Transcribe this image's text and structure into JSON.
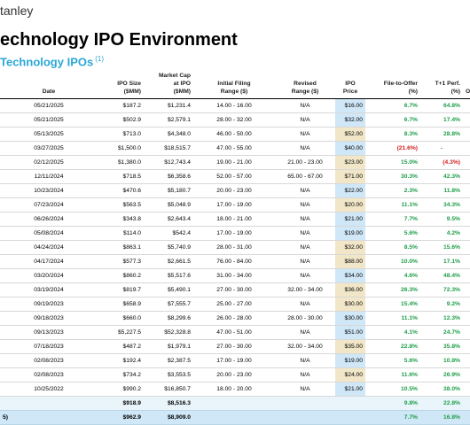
{
  "brand": "tanley",
  "title": "echnology IPO Environment",
  "subtitle": "Technology IPOs",
  "subtitle_note": "(1)",
  "headers": {
    "date": "Date",
    "ipo_size": "IPO Size\n($MM)",
    "mcap": "Market Cap\nat IPO\n($MM)",
    "filing": "Initial Filing\nRange ($)",
    "revised": "Revised\nRange ($)",
    "price": "IPO\nPrice",
    "fto": "File-to-Offer\n(%)",
    "t1": "T+1 Perf.\n(%)",
    "extra": "O"
  },
  "rows": [
    {
      "date": "05/21/2025",
      "size": "$187.2",
      "mcap": "$1,231.4",
      "filing": "14.00 - 16.00",
      "revised": "N/A",
      "price": "$16.00",
      "price_color": "blue",
      "fto": "6.7%",
      "fto_color": "green",
      "t1": "64.8%",
      "t1_color": "green"
    },
    {
      "date": "05/21/2025",
      "size": "$502.9",
      "mcap": "$2,579.1",
      "filing": "28.00 - 32.00",
      "revised": "N/A",
      "price": "$32.00",
      "price_color": "blue",
      "fto": "6.7%",
      "fto_color": "green",
      "t1": "17.4%",
      "t1_color": "green"
    },
    {
      "date": "05/13/2025",
      "size": "$713.0",
      "mcap": "$4,348.0",
      "filing": "46.00 - 50.00",
      "revised": "N/A",
      "price": "$52.00",
      "price_color": "tan",
      "fto": "8.3%",
      "fto_color": "green",
      "t1": "28.8%",
      "t1_color": "green"
    },
    {
      "date": "03/27/2025",
      "size": "$1,500.0",
      "mcap": "$18,515.7",
      "filing": "47.00 - 55.00",
      "revised": "N/A",
      "price": "$40.00",
      "price_color": "blue",
      "fto": "(21.6%)",
      "fto_color": "red",
      "t1": "-",
      "t1_color": "black"
    },
    {
      "date": "02/12/2025",
      "size": "$1,380.0",
      "mcap": "$12,743.4",
      "filing": "19.00 - 21.00",
      "revised": "21.00 - 23.00",
      "price": "$23.00",
      "price_color": "tan",
      "fto": "15.0%",
      "fto_color": "green",
      "t1": "(4.3%)",
      "t1_color": "red"
    },
    {
      "date": "12/11/2024",
      "size": "$718.5",
      "mcap": "$6,358.6",
      "filing": "52.00 - 57.00",
      "revised": "65.00 - 67.00",
      "price": "$71.00",
      "price_color": "tan",
      "fto": "30.3%",
      "fto_color": "green",
      "t1": "42.3%",
      "t1_color": "green"
    },
    {
      "date": "10/23/2024",
      "size": "$470.6",
      "mcap": "$5,180.7",
      "filing": "20.00 - 23.00",
      "revised": "N/A",
      "price": "$22.00",
      "price_color": "blue",
      "fto": "2.3%",
      "fto_color": "green",
      "t1": "11.8%",
      "t1_color": "green"
    },
    {
      "date": "07/23/2024",
      "size": "$563.5",
      "mcap": "$5,048.9",
      "filing": "17.00 - 19.00",
      "revised": "N/A",
      "price": "$20.00",
      "price_color": "tan",
      "fto": "11.1%",
      "fto_color": "green",
      "t1": "34.3%",
      "t1_color": "green"
    },
    {
      "date": "06/26/2024",
      "size": "$343.8",
      "mcap": "$2,643.4",
      "filing": "18.00 - 21.00",
      "revised": "N/A",
      "price": "$21.00",
      "price_color": "blue",
      "fto": "7.7%",
      "fto_color": "green",
      "t1": "9.5%",
      "t1_color": "green"
    },
    {
      "date": "05/08/2024",
      "size": "$114.0",
      "mcap": "$542.4",
      "filing": "17.00 - 19.00",
      "revised": "N/A",
      "price": "$19.00",
      "price_color": "blue",
      "fto": "5.6%",
      "fto_color": "green",
      "t1": "4.2%",
      "t1_color": "green"
    },
    {
      "date": "04/24/2024",
      "size": "$863.1",
      "mcap": "$5,740.9",
      "filing": "28.00 - 31.00",
      "revised": "N/A",
      "price": "$32.00",
      "price_color": "tan",
      "fto": "8.5%",
      "fto_color": "green",
      "t1": "15.6%",
      "t1_color": "green"
    },
    {
      "date": "04/17/2024",
      "size": "$577.3",
      "mcap": "$2,661.5",
      "filing": "76.00 - 84.00",
      "revised": "N/A",
      "price": "$88.00",
      "price_color": "tan",
      "fto": "10.0%",
      "fto_color": "green",
      "t1": "17.1%",
      "t1_color": "green"
    },
    {
      "date": "03/20/2024",
      "size": "$860.2",
      "mcap": "$5,517.6",
      "filing": "31.00 - 34.00",
      "revised": "N/A",
      "price": "$34.00",
      "price_color": "blue",
      "fto": "4.6%",
      "fto_color": "green",
      "t1": "48.4%",
      "t1_color": "green"
    },
    {
      "date": "03/19/2024",
      "size": "$819.7",
      "mcap": "$5,490.1",
      "filing": "27.00 - 30.00",
      "revised": "32.00 - 34.00",
      "price": "$36.00",
      "price_color": "tan",
      "fto": "26.3%",
      "fto_color": "green",
      "t1": "72.3%",
      "t1_color": "green"
    },
    {
      "date": "09/19/2023",
      "size": "$658.9",
      "mcap": "$7,555.7",
      "filing": "25.00 - 27.00",
      "revised": "N/A",
      "price": "$30.00",
      "price_color": "tan",
      "fto": "15.4%",
      "fto_color": "green",
      "t1": "9.2%",
      "t1_color": "green"
    },
    {
      "date": "09/18/2023",
      "size": "$660.0",
      "mcap": "$8,299.6",
      "filing": "26.00 - 28.00",
      "revised": "28.00 - 30.00",
      "price": "$30.00",
      "price_color": "blue",
      "fto": "11.1%",
      "fto_color": "green",
      "t1": "12.3%",
      "t1_color": "green"
    },
    {
      "date": "09/13/2023",
      "size": "$5,227.5",
      "mcap": "$52,328.8",
      "filing": "47.00 - 51.00",
      "revised": "N/A",
      "price": "$51.00",
      "price_color": "blue",
      "fto": "4.1%",
      "fto_color": "green",
      "t1": "24.7%",
      "t1_color": "green"
    },
    {
      "date": "07/18/2023",
      "size": "$487.2",
      "mcap": "$1,979.1",
      "filing": "27.00 - 30.00",
      "revised": "32.00 - 34.00",
      "price": "$35.00",
      "price_color": "tan",
      "fto": "22.8%",
      "fto_color": "green",
      "t1": "35.8%",
      "t1_color": "green"
    },
    {
      "date": "02/08/2023",
      "size": "$192.4",
      "mcap": "$2,387.5",
      "filing": "17.00 - 19.00",
      "revised": "N/A",
      "price": "$19.00",
      "price_color": "blue",
      "fto": "5.6%",
      "fto_color": "green",
      "t1": "10.8%",
      "t1_color": "green"
    },
    {
      "date": "02/08/2023",
      "size": "$734.2",
      "mcap": "$3,553.5",
      "filing": "20.00 - 23.00",
      "revised": "N/A",
      "price": "$24.00",
      "price_color": "tan",
      "fto": "11.6%",
      "fto_color": "green",
      "t1": "26.9%",
      "t1_color": "green"
    },
    {
      "date": "10/25/2022",
      "size": "$990.2",
      "mcap": "$16,850.7",
      "filing": "18.00 - 20.00",
      "revised": "N/A",
      "price": "$21.00",
      "price_color": "blue",
      "fto": "10.5%",
      "fto_color": "green",
      "t1": "38.0%",
      "t1_color": "green"
    }
  ],
  "summary": [
    {
      "label": "",
      "size": "$918.9",
      "mcap": "$8,516.3",
      "fto": "9.8%",
      "t1": "22.8%"
    },
    {
      "label": "5)",
      "size": "$962.9",
      "mcap": "$8,909.0",
      "fto": "7.7%",
      "t1": "16.8%"
    }
  ]
}
